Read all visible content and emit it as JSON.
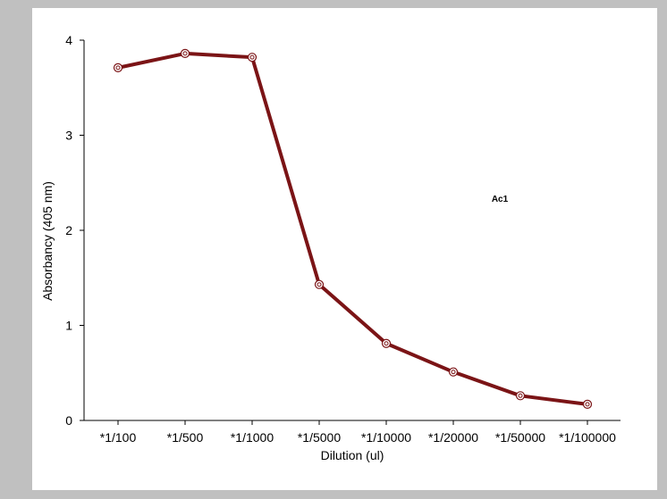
{
  "chart_data": {
    "type": "line",
    "title": "",
    "xlabel": "Dilution (ul)",
    "ylabel": "Absorbancy (405 nm)",
    "categories": [
      "*1/100",
      "*1/500",
      "*1/1000",
      "*1/5000",
      "*1/10000",
      "*1/20000",
      "*1/50000",
      "*1/100000"
    ],
    "series": [
      {
        "values": [
          3.71,
          3.86,
          3.82,
          1.43,
          0.81,
          0.51,
          0.26,
          0.17
        ]
      }
    ],
    "ylim": [
      0,
      4
    ],
    "yticks": [
      0,
      1,
      2,
      3,
      4
    ],
    "annotation": "Ac1",
    "grid": false,
    "line_color": "#7b1416",
    "background": "#c0c0c0"
  }
}
